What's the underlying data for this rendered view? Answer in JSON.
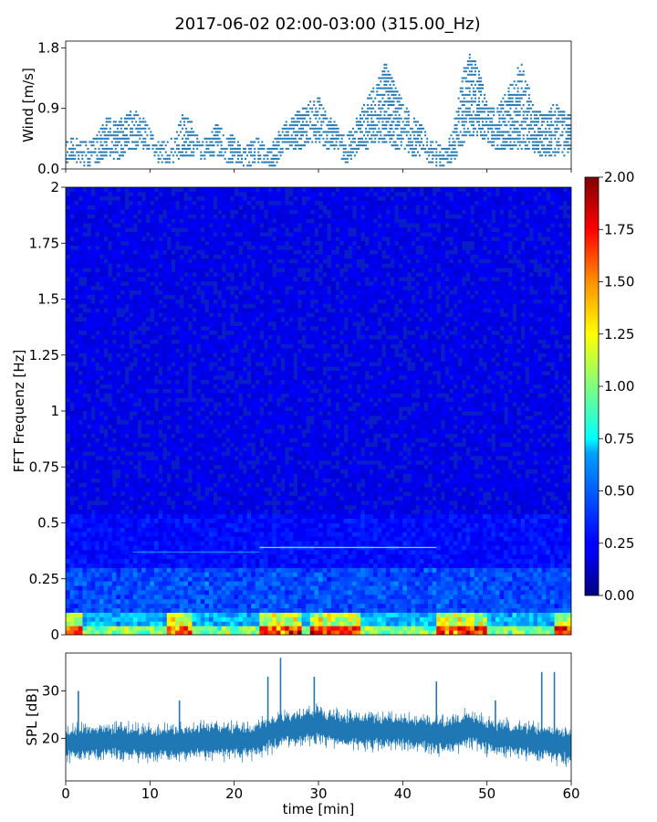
{
  "chart_data": {
    "title": "2017-06-02 02:00-03:00 (315.00_Hz)",
    "wind": {
      "type": "scatter",
      "ylabel": "Wind [m/s]",
      "ylim": [
        0,
        1.9
      ],
      "yticks": [
        0.0,
        0.9,
        1.8
      ],
      "yticklabels": [
        "0.0",
        "0.9",
        "1.8"
      ],
      "xlim": [
        0,
        60
      ],
      "color": "#1f77b4",
      "envelope_t": [
        0,
        1,
        2,
        3,
        4,
        5,
        6,
        7,
        8,
        9,
        10,
        11,
        12,
        13,
        14,
        15,
        16,
        17,
        18,
        19,
        20,
        21,
        22,
        23,
        24,
        25,
        26,
        27,
        28,
        29,
        30,
        31,
        32,
        33,
        34,
        35,
        36,
        37,
        38,
        39,
        40,
        41,
        42,
        43,
        44,
        45,
        46,
        47,
        48,
        49,
        50,
        51,
        52,
        53,
        54,
        55,
        56,
        57,
        58,
        59,
        60
      ],
      "envelope_lo": [
        0.1,
        0.1,
        0.05,
        0.05,
        0.1,
        0.2,
        0.1,
        0.2,
        0.3,
        0.3,
        0.3,
        0.1,
        0.1,
        0.1,
        0.2,
        0.2,
        0.1,
        0.2,
        0.2,
        0.1,
        0.1,
        0.05,
        0.05,
        0.1,
        0.05,
        0.05,
        0.3,
        0.3,
        0.3,
        0.4,
        0.4,
        0.3,
        0.3,
        0.1,
        0.1,
        0.3,
        0.3,
        0.4,
        0.4,
        0.3,
        0.3,
        0.2,
        0.2,
        0.1,
        0.05,
        0.05,
        0.1,
        0.3,
        0.5,
        0.5,
        0.4,
        0.3,
        0.3,
        0.3,
        0.3,
        0.3,
        0.2,
        0.2,
        0.2,
        0.2,
        0.2
      ],
      "envelope_hi": [
        0.4,
        0.5,
        0.4,
        0.4,
        0.6,
        0.8,
        0.7,
        0.8,
        0.9,
        0.8,
        0.6,
        0.4,
        0.4,
        0.5,
        0.9,
        0.7,
        0.4,
        0.5,
        0.7,
        0.5,
        0.5,
        0.3,
        0.4,
        0.5,
        0.3,
        0.5,
        0.7,
        0.8,
        0.9,
        1.0,
        1.1,
        0.8,
        0.7,
        0.5,
        0.6,
        0.9,
        1.1,
        1.3,
        1.6,
        1.3,
        1.0,
        0.8,
        0.7,
        0.5,
        0.4,
        0.3,
        0.6,
        1.4,
        1.8,
        1.5,
        1.0,
        0.9,
        1.1,
        1.3,
        1.6,
        1.2,
        0.9,
        0.8,
        1.0,
        0.9,
        0.8
      ]
    },
    "spectrogram": {
      "type": "heatmap",
      "ylabel": "FFT Frequenz [Hz]",
      "ylim": [
        0,
        2
      ],
      "yticks": [
        0,
        0.25,
        0.5,
        0.75,
        1,
        1.25,
        1.5,
        1.75,
        2
      ],
      "yticklabels": [
        "0",
        "0.25",
        "0.5",
        "0.75",
        "1",
        "1.25",
        "1.5",
        "1.75",
        "2"
      ],
      "xlim": [
        0,
        60
      ],
      "colormap": "jet",
      "colorbar": {
        "range": [
          0,
          2
        ],
        "ticks": [
          0.0,
          0.25,
          0.5,
          0.75,
          1.0,
          1.25,
          1.5,
          1.75,
          2.0
        ],
        "ticklabels": [
          "0.00",
          "0.25",
          "0.50",
          "0.75",
          "1.00",
          "1.25",
          "1.50",
          "1.75",
          "2.00"
        ]
      },
      "line_freq_hz": 0.39,
      "line_segment_min": [
        23,
        44
      ],
      "secondary_line_freq_hz": 0.37,
      "low_freq_hot_segments_min": [
        [
          0,
          2
        ],
        [
          12,
          15
        ],
        [
          23,
          28
        ],
        [
          29,
          35
        ],
        [
          44,
          50
        ],
        [
          58,
          60
        ]
      ]
    },
    "spl": {
      "type": "line",
      "ylabel": "SPL [dB]",
      "xlabel": "time [min]",
      "ylim": [
        11,
        38
      ],
      "yticks": [
        20,
        30
      ],
      "yticklabels": [
        "20",
        "30"
      ],
      "xlim": [
        0,
        60
      ],
      "xticks": [
        0,
        10,
        20,
        30,
        40,
        50,
        60
      ],
      "xticklabels": [
        "0",
        "10",
        "20",
        "30",
        "40",
        "50",
        "60"
      ],
      "color": "#1f77b4",
      "median_t": [
        0,
        5,
        10,
        15,
        20,
        22,
        24,
        26,
        28,
        30,
        32,
        35,
        40,
        45,
        48,
        50,
        55,
        60
      ],
      "median_db": [
        19,
        19.5,
        19,
        19.5,
        19.5,
        19.5,
        21,
        22,
        22.5,
        23,
        22,
        21.5,
        21.5,
        20.5,
        22,
        20.5,
        19.5,
        18.5
      ],
      "spikes": [
        [
          1.5,
          30
        ],
        [
          13.5,
          28
        ],
        [
          24,
          33
        ],
        [
          25.5,
          37
        ],
        [
          29.5,
          33
        ],
        [
          44,
          32
        ],
        [
          51,
          28
        ],
        [
          56.5,
          34
        ],
        [
          58,
          34
        ]
      ]
    }
  }
}
